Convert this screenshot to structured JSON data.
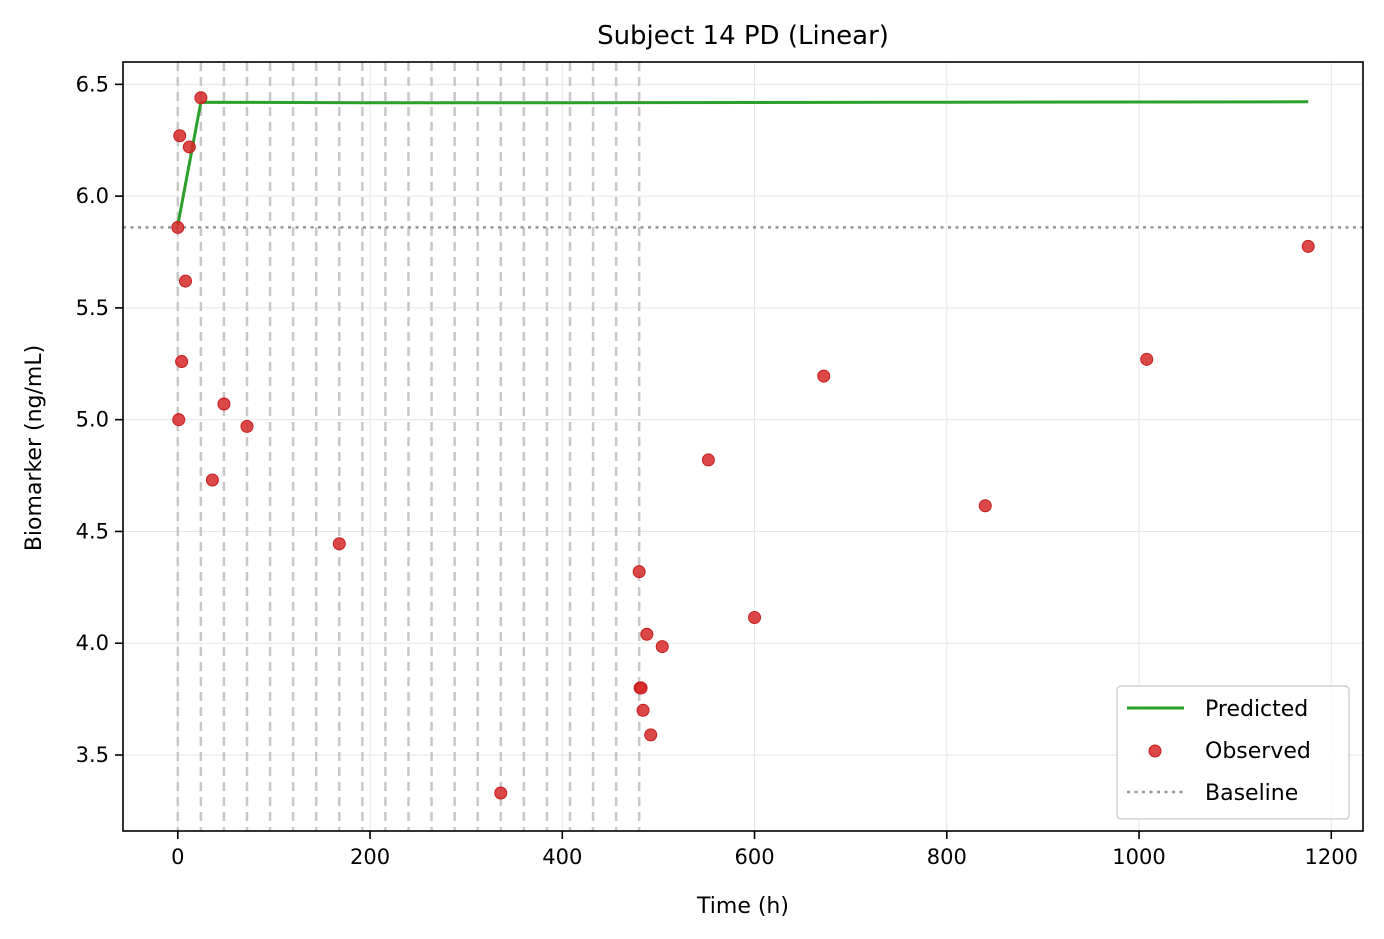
{
  "chart_data": {
    "type": "line",
    "title": "Subject 14 PD (Linear)",
    "xlabel": "Time (h)",
    "ylabel": "Biomarker (ng/mL)",
    "xlim": [
      -57,
      1233
    ],
    "ylim": [
      3.16,
      6.6
    ],
    "xticks": [
      0,
      200,
      400,
      600,
      800,
      1000,
      1200
    ],
    "yticks": [
      3.5,
      4.0,
      4.5,
      5.0,
      5.5,
      6.0,
      6.5
    ],
    "grid": true,
    "legend_position": "lower-right",
    "baseline": 5.86,
    "dose_times": [
      0,
      24,
      48,
      72,
      96,
      120,
      144,
      168,
      192,
      216,
      240,
      264,
      288,
      312,
      336,
      360,
      384,
      408,
      432,
      456,
      480
    ],
    "series": [
      {
        "name": "Predicted",
        "kind": "line",
        "color": "#2ca02c",
        "x": [
          0,
          24,
          200,
          400,
          600,
          800,
          1000,
          1176
        ],
        "y": [
          5.87,
          6.42,
          6.418,
          6.418,
          6.419,
          6.42,
          6.421,
          6.422
        ]
      },
      {
        "name": "Observed",
        "kind": "scatter",
        "color": "#d62728",
        "x": [
          0,
          1,
          2,
          4,
          8,
          12,
          24,
          36,
          48,
          72,
          168,
          336,
          480,
          481,
          482,
          484,
          488,
          492,
          504,
          552,
          600,
          672,
          840,
          1008,
          1176
        ],
        "y": [
          5.86,
          5.0,
          6.27,
          5.26,
          5.62,
          6.22,
          6.44,
          4.73,
          5.07,
          4.97,
          4.445,
          3.33,
          4.32,
          3.8,
          3.8,
          3.7,
          4.04,
          3.59,
          3.985,
          4.82,
          4.115,
          5.195,
          4.615,
          5.27,
          5.775
        ]
      },
      {
        "name": "Baseline",
        "kind": "hline",
        "color": "#959595"
      }
    ]
  }
}
